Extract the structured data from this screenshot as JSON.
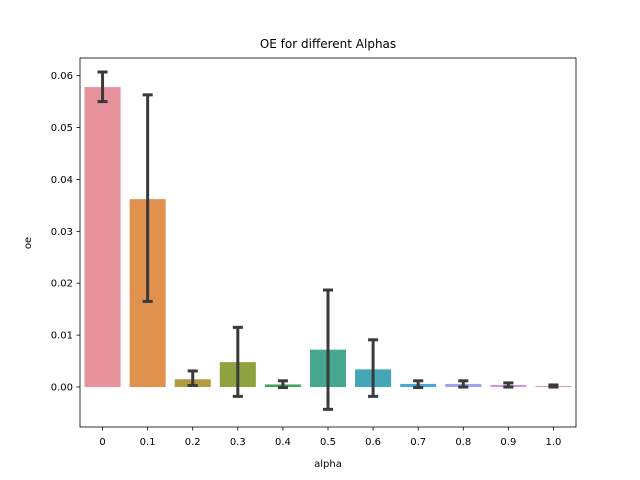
{
  "chart_data": {
    "type": "bar",
    "title": "OE for different Alphas",
    "xlabel": "alpha",
    "ylabel": "oe",
    "categories": [
      "0",
      "0.1",
      "0.2",
      "0.3",
      "0.4",
      "0.5",
      "0.6",
      "0.7",
      "0.8",
      "0.9",
      "1.0"
    ],
    "values": [
      0.0578,
      0.0362,
      0.0015,
      0.0048,
      0.0005,
      0.0072,
      0.0034,
      0.0006,
      0.0006,
      0.0004,
      0.0002
    ],
    "error_low": [
      0.055,
      0.0165,
      0.0003,
      -0.0018,
      -0.0001,
      -0.0043,
      -0.0018,
      -0.0001,
      0.0,
      0.0,
      0.0
    ],
    "error_high": [
      0.0607,
      0.0563,
      0.0031,
      0.0115,
      0.0012,
      0.0187,
      0.0091,
      0.0012,
      0.0012,
      0.0008,
      0.0004
    ],
    "bar_colors": [
      "#e8929e",
      "#df914d",
      "#b29a40",
      "#8fa23f",
      "#44a55a",
      "#47a891",
      "#45a6b6",
      "#4fa6d8",
      "#9da6e6",
      "#cb96e5",
      "#e691c6"
    ],
    "error_color": "#3a3a3a",
    "yticks": [
      0.0,
      0.01,
      0.02,
      0.03,
      0.04,
      0.05,
      0.06
    ],
    "ytick_labels": [
      "0.00",
      "0.01",
      "0.02",
      "0.03",
      "0.04",
      "0.05",
      "0.06"
    ],
    "ylim": [
      -0.0077,
      0.0634
    ],
    "grid": false,
    "legend": "none"
  }
}
